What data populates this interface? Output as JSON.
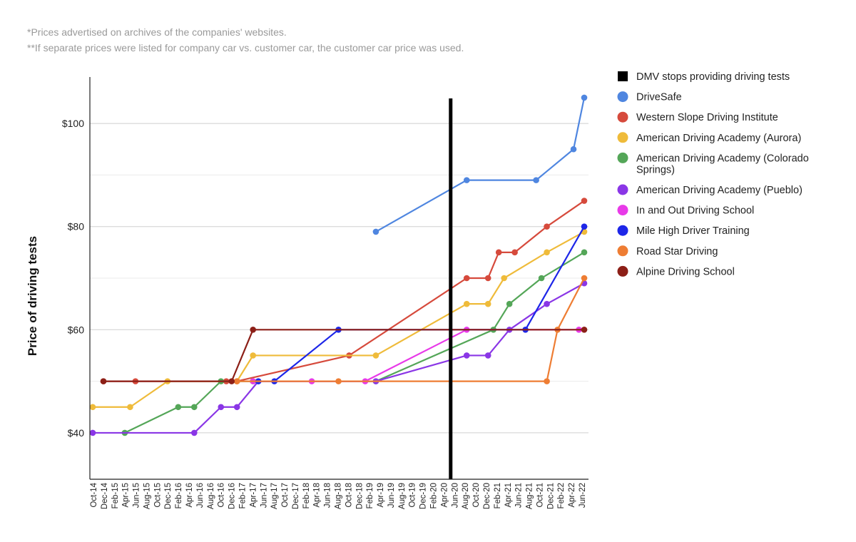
{
  "notes": [
    "*Prices advertised on archives of the companies' websites.",
    "**If separate prices were listed for company car vs. customer car, the customer car price was used."
  ],
  "chart_data": {
    "type": "line",
    "title": "",
    "xlabel": "",
    "ylabel": "Price of driving tests",
    "ylim": [
      31,
      109
    ],
    "y_ticks": [
      40,
      60,
      80,
      100
    ],
    "y_tick_labels": [
      "$40",
      "$60",
      "$80",
      "$100"
    ],
    "grid": true,
    "legend_position": "right",
    "x_ticks": [
      "Oct-14",
      "Dec-14",
      "Feb-15",
      "Apr-15",
      "Jun-15",
      "Aug-15",
      "Oct-15",
      "Dec-15",
      "Feb-16",
      "Apr-16",
      "Jun-16",
      "Aug-16",
      "Oct-16",
      "Dec-16",
      "Feb-17",
      "Apr-17",
      "Jun-17",
      "Aug-17",
      "Oct-17",
      "Dec-17",
      "Feb-18",
      "Apr-18",
      "Jun-18",
      "Aug-18",
      "Oct-18",
      "Dec-18",
      "Feb-19",
      "Apr-19",
      "Jun-19",
      "Aug-19",
      "Oct-19",
      "Dec-19",
      "Feb-20",
      "Apr-20",
      "Jun-20",
      "Aug-20",
      "Oct-20",
      "Dec-20",
      "Feb-21",
      "Apr-21",
      "Jun-21",
      "Aug-21",
      "Oct-21",
      "Dec-21",
      "Feb-22",
      "Apr-22",
      "Jun-22"
    ],
    "event": {
      "name": "DMV stops providing driving tests",
      "x": "2020-05",
      "color": "#000000"
    },
    "series": [
      {
        "name": "DriveSafe",
        "color": "#4f86e0",
        "points": [
          [
            "2019-03",
            79
          ],
          [
            "2020-08",
            89
          ],
          [
            "2021-09",
            89
          ],
          [
            "2022-04",
            95
          ],
          [
            "2022-06",
            105
          ]
        ]
      },
      {
        "name": "Western Slope Driving Institute",
        "color": "#d64a3c",
        "points": [
          [
            "2014-12",
            50
          ],
          [
            "2015-06",
            50
          ],
          [
            "2016-11",
            50
          ],
          [
            "2017-01",
            50
          ],
          [
            "2018-10",
            55
          ],
          [
            "2020-08",
            70
          ],
          [
            "2020-12",
            70
          ],
          [
            "2021-02",
            75
          ],
          [
            "2021-05",
            75
          ],
          [
            "2021-11",
            80
          ],
          [
            "2022-06",
            85
          ]
        ]
      },
      {
        "name": "American Driving Academy (Aurora)",
        "color": "#efbb3a",
        "points": [
          [
            "2014-10",
            45
          ],
          [
            "2015-05",
            45
          ],
          [
            "2015-12",
            50
          ],
          [
            "2017-01",
            50
          ],
          [
            "2017-04",
            55
          ],
          [
            "2019-03",
            55
          ],
          [
            "2020-08",
            65
          ],
          [
            "2020-12",
            65
          ],
          [
            "2021-03",
            70
          ],
          [
            "2021-11",
            75
          ],
          [
            "2022-06",
            79
          ]
        ]
      },
      {
        "name": "American Driving Academy (Colorado Springs)",
        "color": "#54a658",
        "points": [
          [
            "2015-04",
            40
          ],
          [
            "2016-02",
            45
          ],
          [
            "2016-05",
            45
          ],
          [
            "2016-10",
            50
          ],
          [
            "2017-04",
            50
          ],
          [
            "2019-03",
            50
          ],
          [
            "2021-01",
            60
          ],
          [
            "2021-04",
            65
          ],
          [
            "2021-10",
            70
          ],
          [
            "2022-06",
            75
          ]
        ]
      },
      {
        "name": "American Driving Academy (Pueblo)",
        "color": "#8a36e6",
        "points": [
          [
            "2014-10",
            40
          ],
          [
            "2016-05",
            40
          ],
          [
            "2016-10",
            45
          ],
          [
            "2017-01",
            45
          ],
          [
            "2017-05",
            50
          ],
          [
            "2019-03",
            50
          ],
          [
            "2020-08",
            55
          ],
          [
            "2020-12",
            55
          ],
          [
            "2021-04",
            60
          ],
          [
            "2021-11",
            65
          ],
          [
            "2022-06",
            69
          ]
        ]
      },
      {
        "name": "In and Out Driving School",
        "color": "#e83ae8",
        "points": [
          [
            "2017-04",
            50
          ],
          [
            "2018-03",
            50
          ],
          [
            "2019-01",
            50
          ],
          [
            "2020-08",
            60
          ],
          [
            "2022-05",
            60
          ]
        ]
      },
      {
        "name": "Mile High Driver Training",
        "color": "#1d26e8",
        "points": [
          [
            "2017-05",
            50
          ],
          [
            "2017-08",
            50
          ],
          [
            "2018-08",
            60
          ],
          [
            "2021-07",
            60
          ],
          [
            "2022-06",
            80
          ]
        ]
      },
      {
        "name": "Road Star Driving",
        "color": "#ee7d33",
        "points": [
          [
            "2017-01",
            50
          ],
          [
            "2018-08",
            50
          ],
          [
            "2021-11",
            50
          ],
          [
            "2022-01",
            60
          ],
          [
            "2022-06",
            70
          ]
        ]
      },
      {
        "name": "Alpine Driving School",
        "color": "#8c1f17",
        "points": [
          [
            "2014-12",
            50
          ],
          [
            "2016-12",
            50
          ],
          [
            "2017-04",
            60
          ],
          [
            "2022-06",
            60
          ]
        ]
      }
    ]
  }
}
